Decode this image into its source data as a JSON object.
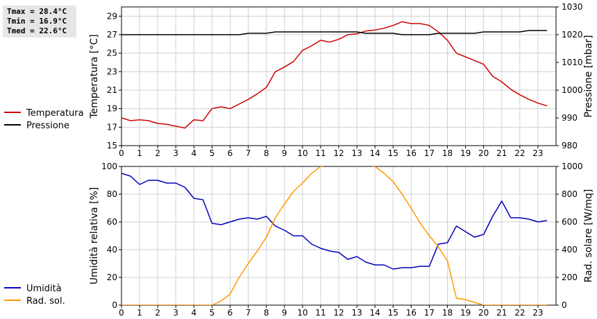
{
  "stats": {
    "tmax": "Tmax = 28.4°C",
    "tmin": "Tmin = 16.9°C",
    "tmed": "Tmed = 22.6°C"
  },
  "chart_data": [
    {
      "type": "line",
      "x_label": "",
      "x_ticks": [
        0,
        1,
        2,
        3,
        4,
        5,
        6,
        7,
        8,
        9,
        10,
        11,
        12,
        13,
        14,
        15,
        16,
        17,
        18,
        19,
        20,
        21,
        22,
        23
      ],
      "xlim": [
        0,
        24
      ],
      "y_left": {
        "label": "Temperatura [°C]",
        "ticks": [
          15,
          17,
          19,
          21,
          23,
          25,
          27,
          29
        ],
        "lim": [
          15,
          30
        ]
      },
      "y_right": {
        "label": "Pressione [mbar]",
        "ticks": [
          980,
          990,
          1000,
          1010,
          1020,
          1030
        ],
        "lim": [
          980,
          1030
        ]
      },
      "grid": true,
      "legend_position": "left-outside",
      "series": [
        {
          "name": "Temperatura",
          "axis": "left",
          "color": "#cc0000",
          "x": [
            0,
            0.5,
            1,
            1.5,
            2,
            2.5,
            3,
            3.5,
            4,
            4.5,
            5,
            5.5,
            6,
            6.5,
            7,
            7.5,
            8,
            8.5,
            9,
            9.5,
            10,
            10.5,
            11,
            11.5,
            12,
            12.5,
            13,
            13.5,
            14,
            14.5,
            15,
            15.5,
            16,
            16.5,
            17,
            17.5,
            18,
            18.5,
            19,
            19.5,
            20,
            20.5,
            21,
            21.5,
            22,
            22.5,
            23,
            23.5
          ],
          "y": [
            18.0,
            17.7,
            17.8,
            17.7,
            17.4,
            17.3,
            17.1,
            16.9,
            17.8,
            17.7,
            19.0,
            19.2,
            19.0,
            19.5,
            20.0,
            20.6,
            21.3,
            23.0,
            23.5,
            24.1,
            25.3,
            25.8,
            26.4,
            26.2,
            26.5,
            27.0,
            27.1,
            27.4,
            27.5,
            27.7,
            28.0,
            28.4,
            28.2,
            28.2,
            28.0,
            27.3,
            26.4,
            25.0,
            24.6,
            24.2,
            23.8,
            22.5,
            21.9,
            21.1,
            20.5,
            20.0,
            19.6,
            19.3
          ]
        },
        {
          "name": "Pressione",
          "axis": "right",
          "color": "#000000",
          "x": [
            0,
            1,
            2,
            3,
            4,
            5,
            6,
            6.5,
            7,
            8,
            8.5,
            9,
            10,
            11,
            12,
            13,
            13.5,
            14,
            15,
            15.5,
            16,
            17,
            17.5,
            18,
            19,
            19.5,
            20,
            21,
            22,
            22.5,
            23,
            23.5
          ],
          "y": [
            1020,
            1020,
            1020,
            1020,
            1020,
            1020,
            1020,
            1020,
            1020.5,
            1020.5,
            1021,
            1021,
            1021,
            1021,
            1021,
            1021,
            1020.5,
            1020.5,
            1020.5,
            1020,
            1020,
            1020,
            1020.5,
            1020.5,
            1020.5,
            1020.5,
            1021,
            1021,
            1021,
            1021.5,
            1021.5,
            1021.5
          ]
        }
      ]
    },
    {
      "type": "line",
      "x_label": "",
      "x_ticks": [
        0,
        1,
        2,
        3,
        4,
        5,
        6,
        7,
        8,
        9,
        10,
        11,
        12,
        13,
        14,
        15,
        16,
        17,
        18,
        19,
        20,
        21,
        22,
        23
      ],
      "xlim": [
        0,
        24
      ],
      "y_left": {
        "label": "Umidità relativa [%]",
        "ticks": [
          0,
          20,
          40,
          60,
          80,
          100
        ],
        "lim": [
          0,
          100
        ]
      },
      "y_right": {
        "label": "Rad. solare [W/mq]",
        "ticks": [
          0,
          200,
          400,
          600,
          800,
          1000
        ],
        "lim": [
          0,
          1000
        ]
      },
      "grid": true,
      "legend_position": "left-outside",
      "series": [
        {
          "name": "Umidità",
          "axis": "left",
          "color": "#0000bb",
          "x": [
            0,
            0.5,
            1,
            1.5,
            2,
            2.5,
            3,
            3.5,
            4,
            4.5,
            5,
            5.5,
            6,
            6.5,
            7,
            7.5,
            8,
            8.5,
            9,
            9.5,
            10,
            10.5,
            11,
            11.5,
            12,
            12.5,
            13,
            13.5,
            14,
            14.5,
            15,
            15.5,
            16,
            16.5,
            17,
            17.5,
            18,
            18.5,
            19,
            19.5,
            20,
            20.5,
            21,
            21.5,
            22,
            22.5,
            23,
            23.5
          ],
          "y": [
            95,
            93,
            87,
            90,
            90,
            88,
            88,
            85,
            77,
            76,
            59,
            58,
            60,
            62,
            63,
            62,
            64,
            57,
            54,
            50,
            50,
            44,
            41,
            39,
            38,
            33,
            35,
            31,
            29,
            29,
            26,
            27,
            27,
            28,
            28,
            44,
            45,
            57,
            53,
            49,
            51,
            64,
            75,
            63,
            63,
            62,
            60,
            61
          ]
        },
        {
          "name": "Rad. sol.",
          "axis": "right",
          "color": "#ff9900",
          "x": [
            0,
            1,
            2,
            3,
            4,
            5,
            5.5,
            6,
            6.5,
            7,
            7.5,
            8,
            8.5,
            9,
            9.5,
            10,
            10.5,
            11,
            11.5,
            12,
            12.5,
            13,
            13.5,
            14,
            14.5,
            15,
            15.5,
            16,
            16.5,
            17,
            17.5,
            18,
            18.5,
            19,
            19.5,
            20,
            21,
            22,
            23,
            23.5
          ],
          "y": [
            0,
            0,
            0,
            0,
            0,
            0,
            30,
            80,
            200,
            300,
            390,
            490,
            630,
            730,
            820,
            880,
            950,
            1000,
            1010,
            1030,
            1040,
            1030,
            1010,
            1000,
            950,
            890,
            800,
            700,
            590,
            500,
            420,
            320,
            50,
            40,
            20,
            0,
            0,
            0,
            0,
            0
          ]
        }
      ]
    }
  ]
}
